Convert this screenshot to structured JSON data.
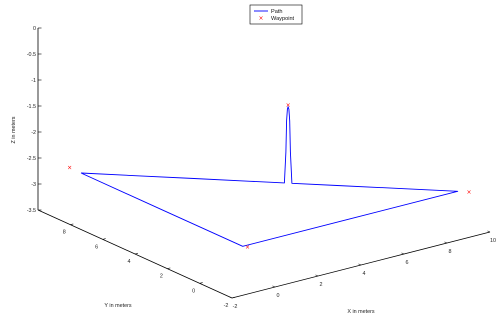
{
  "chart_data": {
    "type": "line",
    "projection": "3d",
    "xlabel": "X in meters",
    "ylabel": "Y in meters",
    "zlabel": "Z in meters",
    "xlim": [
      -2,
      10
    ],
    "ylim": [
      -2,
      10
    ],
    "zlim": [
      -3.5,
      0
    ],
    "x_ticks": [
      "-2",
      "0",
      "2",
      "4",
      "6",
      "8",
      "10"
    ],
    "y_ticks": [
      "-2",
      "0",
      "2",
      "4",
      "6",
      "8"
    ],
    "z_ticks": [
      "0",
      "-0.5",
      "-1",
      "-1.5",
      "-2",
      "-2.5",
      "-3",
      "-3.5"
    ],
    "grid": false,
    "legend": {
      "position": "top-center",
      "entries": [
        "Path",
        "Waypoint"
      ]
    },
    "series": [
      {
        "name": "Path",
        "style": "line",
        "color": "#0000ff",
        "points": [
          [
            0,
            10,
            -3
          ],
          [
            1.5,
            8.5,
            -3
          ],
          [
            3,
            7,
            -3
          ],
          [
            4.5,
            5.5,
            -3
          ],
          [
            5.4,
            4.6,
            -3
          ],
          [
            5.44,
            4.56,
            -2.4
          ],
          [
            5.46,
            4.54,
            -1.8
          ],
          [
            5.48,
            4.52,
            -1.58
          ],
          [
            5.5,
            4.5,
            -1.53
          ],
          [
            5.52,
            4.48,
            -1.58
          ],
          [
            5.54,
            4.46,
            -1.8
          ],
          [
            5.56,
            4.44,
            -2.4
          ],
          [
            5.6,
            4.4,
            -3
          ],
          [
            6.8,
            3.2,
            -3
          ],
          [
            8.3,
            1.7,
            -3
          ],
          [
            10,
            0,
            -3
          ],
          [
            5,
            0,
            -3
          ],
          [
            0,
            0,
            -3
          ],
          [
            0,
            5,
            -3
          ],
          [
            0,
            10,
            -3
          ]
        ]
      },
      {
        "name": "Waypoint",
        "style": "marker",
        "marker": "x",
        "color": "#ff0000",
        "points": [
          [
            -0.3,
            10.3,
            -2.9
          ],
          [
            5.5,
            4.5,
            -1.5
          ],
          [
            0,
            -0.3,
            -2.97
          ],
          [
            10.3,
            -0.3,
            -3
          ]
        ]
      }
    ]
  }
}
